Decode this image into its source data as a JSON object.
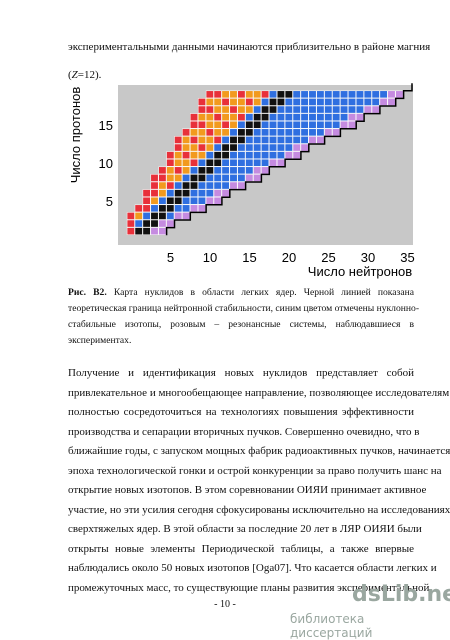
{
  "top": {
    "line1": "экспериментальными данными начинаются приблизительно в районе магния",
    "line2": [
      "(",
      "Z",
      "=12)."
    ]
  },
  "figure": {
    "x_ticks": [
      5,
      10,
      15,
      20,
      25,
      30,
      35
    ],
    "y_ticks": [
      5,
      10,
      15
    ],
    "x_label": "Число нейтронов",
    "y_label": "Число протонов"
  },
  "caption": {
    "label": "Рис. В2.",
    "lines": [
      "Карта нуклидов в области легких ядер. Черной линией показана",
      "теоретическая граница нейтронной стабильности, синим цветом отмечены нуклонно-",
      "стабильные изотопы, розовым – резонансные системы, наблюдавшиеся в",
      "экспериментах."
    ]
  },
  "paragraph": [
    "Получение и идентификация новых нуклидов представляет собой",
    "привлекательное и многообещающее направление, позволяющее исследователям",
    "полностью сосредоточиться на технологиях повышения эффективности",
    "производства и сепарации вторичных пучков. Совершенно очевидно, что в",
    "ближайшие годы, с запуском мощных фабрик радиоактивных пучков, начинается",
    "эпоха технологической гонки и острой конкуренции за право получить шанс на",
    "открытие новых изотопов. В этом соревновании ОИЯИ принимает активное",
    "участие, но эти усилия сегодня сфокусированы исключительно на исследованиях",
    "сверхтяжелых ядер. В этой области за последние 20 лет в ЛЯР ОИЯИ были",
    "открыты новые элементы Периодической таблицы, а также впервые",
    "наблюдались около 50 новых изотопов [Oga07]. Что касается области легких и",
    "промежуточных масс, то существующие планы развития экспериментальной"
  ],
  "page_number": "- 10 -",
  "watermark": {
    "logo": "dsLib.net",
    "subtitle": "библиотека диссертаций"
  }
}
